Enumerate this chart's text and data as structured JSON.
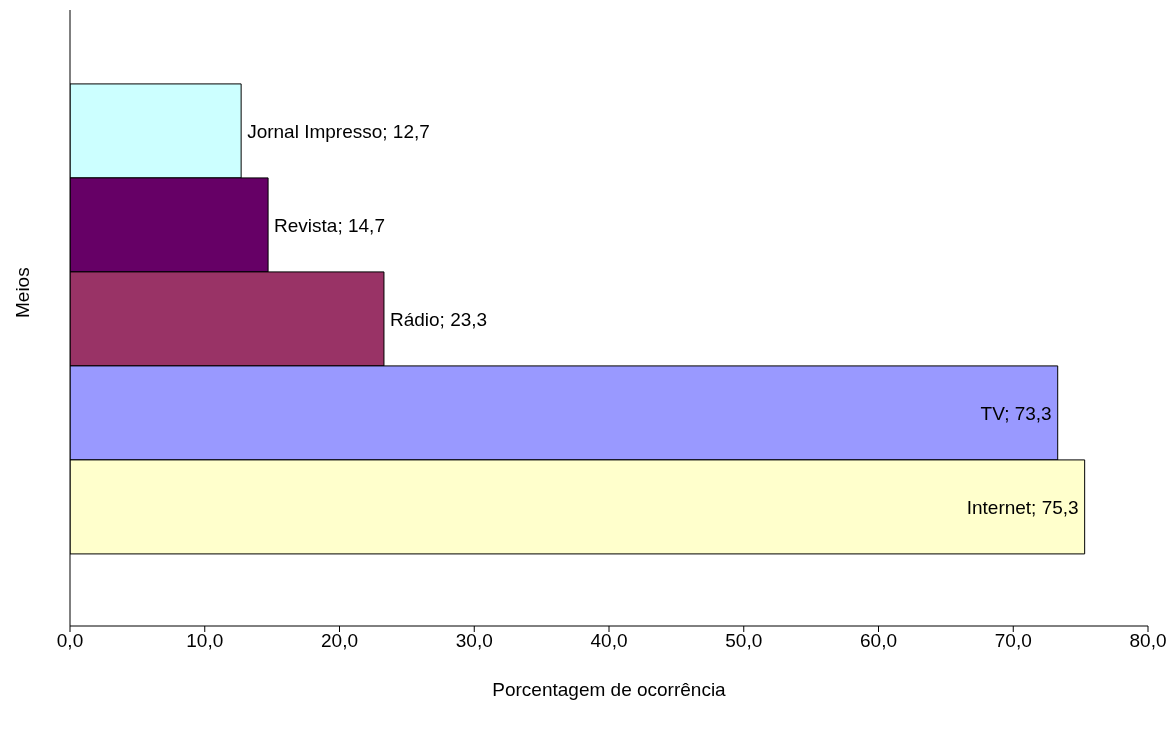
{
  "chart_data": {
    "type": "bar",
    "orientation": "horizontal",
    "xlabel": "Porcentagem de ocorrência",
    "ylabel": "Meios",
    "categories": [
      null
    ],
    "series": [
      {
        "color": "#ccffff",
        "values": [
          12.7
        ],
        "value_labels": [
          "Jornal Impresso; 12,7"
        ]
      },
      {
        "color": "#660066",
        "values": [
          14.7
        ],
        "value_labels": [
          "Revista; 14,7"
        ]
      },
      {
        "color": "#993366",
        "values": [
          23.3
        ],
        "value_labels": [
          "Rádio; 23,3"
        ]
      },
      {
        "color": "#9999ff",
        "values": [
          73.3
        ],
        "value_labels": [
          "TV; 73,3"
        ]
      },
      {
        "color": "#ffffcc",
        "values": [
          75.3
        ],
        "value_labels": [
          "Internet; 75,3"
        ]
      }
    ],
    "xlim": [
      0,
      80
    ],
    "xticks": [
      {
        "value": 0,
        "label": "0,0"
      },
      {
        "value": 10,
        "label": "10,0"
      },
      {
        "value": 20,
        "label": "20,0"
      },
      {
        "value": 30,
        "label": "30,0"
      },
      {
        "value": 40,
        "label": "40,0"
      },
      {
        "value": 50,
        "label": "50,0"
      },
      {
        "value": 60,
        "label": "60,0"
      },
      {
        "value": 70,
        "label": "70,0"
      },
      {
        "value": 80,
        "label": "80,0"
      }
    ],
    "tick_labels": "x",
    "grid": false,
    "legend": false
  }
}
